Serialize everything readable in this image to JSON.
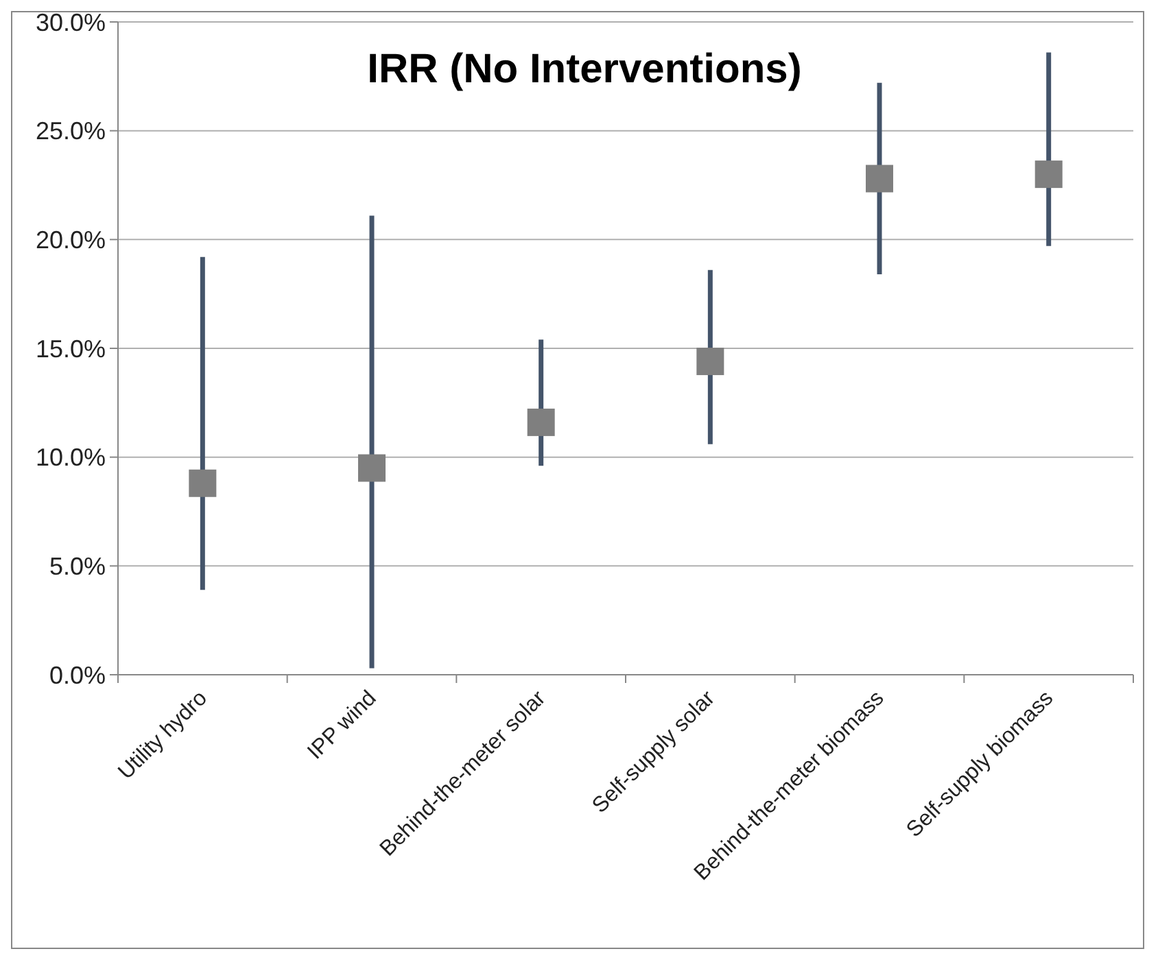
{
  "chart_data": {
    "type": "scatter",
    "title": "IRR (No Interventions)",
    "categories": [
      "Utility hydro",
      "IPP wind",
      "Behind-the-meter solar",
      "Self-supply solar",
      "Behind-the-meter biomass",
      "Self-supply biomass"
    ],
    "series": [
      {
        "color": "#7f7f7f",
        "values": [
          8.8,
          9.5,
          11.6,
          14.4,
          22.8,
          23.0
        ],
        "errors": [
          [
            3.9,
            19.2
          ],
          [
            0.3,
            21.1
          ],
          [
            9.6,
            15.4
          ],
          [
            10.6,
            18.6
          ],
          [
            18.4,
            27.2
          ],
          [
            19.7,
            28.6
          ]
        ]
      }
    ],
    "ylim": [
      0,
      30
    ],
    "yticks": [
      {
        "value": 0,
        "label": "0.0%"
      },
      {
        "value": 5,
        "label": "5.0%"
      },
      {
        "value": 10,
        "label": "10.0%"
      },
      {
        "value": 15,
        "label": "15.0%"
      },
      {
        "value": 20,
        "label": "20.0%"
      },
      {
        "value": 25,
        "label": "25.0%"
      },
      {
        "value": 30,
        "label": "30.0%"
      }
    ],
    "grid": "y",
    "marker": "square"
  }
}
